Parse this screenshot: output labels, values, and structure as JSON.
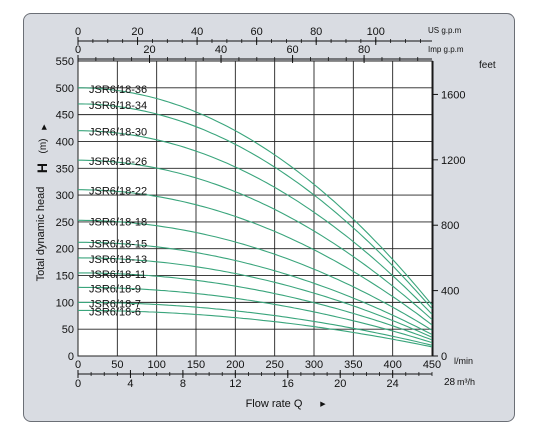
{
  "chart_data": {
    "type": "line",
    "ylabel": "Total dynamic head",
    "ysymbol": "H",
    "yunit": "(m)",
    "xlabel": "Flow rate Q",
    "right_axis_unit": "feet",
    "top_axis_1_unit": "US g.p.m",
    "top_axis_2_unit": "Imp g.p.m",
    "bottom_lmin_unit": "l/min",
    "bottom_m3h_unit": "m³/h",
    "xlim": [
      0,
      450
    ],
    "ylim": [
      0,
      550
    ],
    "x_ticks": [
      0,
      50,
      100,
      150,
      200,
      250,
      300,
      350,
      400,
      450
    ],
    "y_ticks": [
      0,
      50,
      100,
      150,
      200,
      250,
      300,
      350,
      400,
      450,
      500,
      550
    ],
    "feet_ticks": [
      0,
      400,
      800,
      1200,
      1600
    ],
    "us_gpm_ticks": [
      0,
      20,
      40,
      60,
      80,
      100
    ],
    "imp_gpm_ticks": [
      0,
      20,
      40,
      60,
      80
    ],
    "m3h_ticks": [
      0,
      4,
      8,
      12,
      16,
      20,
      24
    ],
    "m3h_end_label": "28",
    "grid": true,
    "line_color": "#3aa57c",
    "series": [
      {
        "name": "JSR6/18-36",
        "shutoff": 500,
        "end": 95
      },
      {
        "name": "JSR6/18-34",
        "shutoff": 470,
        "end": 88
      },
      {
        "name": "JSR6/18-30",
        "shutoff": 420,
        "end": 78
      },
      {
        "name": "JSR6/18-26",
        "shutoff": 365,
        "end": 68
      },
      {
        "name": "JSR6/18-22",
        "shutoff": 310,
        "end": 58
      },
      {
        "name": "JSR6/18-18",
        "shutoff": 253,
        "end": 48
      },
      {
        "name": "JSR6/18-15",
        "shutoff": 212,
        "end": 40
      },
      {
        "name": "JSR6/18-13",
        "shutoff": 183,
        "end": 35
      },
      {
        "name": "JSR6/18-11",
        "shutoff": 155,
        "end": 30
      },
      {
        "name": "JSR6/18-9",
        "shutoff": 128,
        "end": 25
      },
      {
        "name": "JSR6/18-7",
        "shutoff": 100,
        "end": 20
      },
      {
        "name": "JSR6/18-6",
        "shutoff": 85,
        "end": 17
      }
    ]
  }
}
